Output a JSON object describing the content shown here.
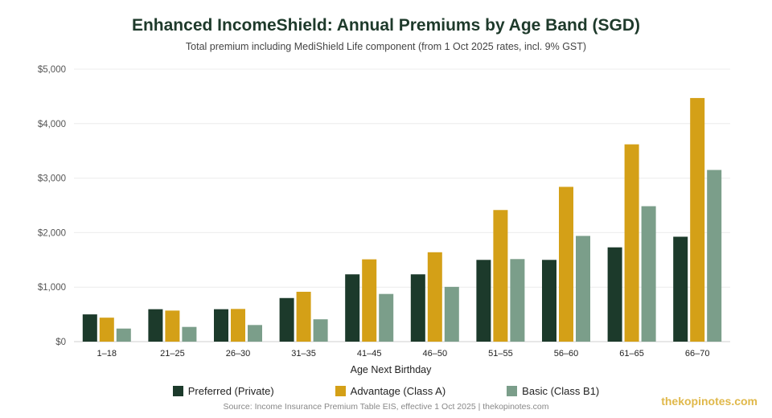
{
  "chart_data": {
    "type": "bar",
    "title": "Enhanced IncomeShield: Annual Premiums by Age Band (SGD)",
    "subtitle": "Total premium including MediShield Life component (from 1 Oct 2025 rates, incl. 9% GST)",
    "xlabel": "Age Next Birthday",
    "ylabel": "",
    "ylim": [
      0,
      5000
    ],
    "yticks": [
      {
        "value": 0,
        "label": "$0"
      },
      {
        "value": 1000,
        "label": "$1,000"
      },
      {
        "value": 2000,
        "label": "$2,000"
      },
      {
        "value": 3000,
        "label": "$3,000"
      },
      {
        "value": 4000,
        "label": "$4,000"
      },
      {
        "value": 5000,
        "label": "$5,000"
      }
    ],
    "grid": true,
    "legend_position": "bottom",
    "categories": [
      "1–18",
      "21–25",
      "26–30",
      "31–35",
      "41–45",
      "46–50",
      "51–55",
      "56–60",
      "61–65",
      "66–70"
    ],
    "series": [
      {
        "name": "Preferred (Private)",
        "color": "#1c3a2b",
        "values": [
          500,
          595,
          595,
          800,
          1235,
          1235,
          1500,
          1500,
          1730,
          1925
        ]
      },
      {
        "name": "Advantage (Class A)",
        "color": "#d4a017",
        "values": [
          440,
          570,
          600,
          915,
          1510,
          1640,
          2415,
          2840,
          3620,
          4470
        ]
      },
      {
        "name": "Basic (Class B1)",
        "color": "#7b9e8a",
        "values": [
          240,
          270,
          305,
          410,
          875,
          1005,
          1515,
          1940,
          2485,
          3150
        ]
      }
    ]
  },
  "footer": {
    "source": "Source: Income Insurance Premium Table EIS, effective 1 Oct 2025 | thekopinotes.com",
    "brand": "thekopinotes.com"
  }
}
